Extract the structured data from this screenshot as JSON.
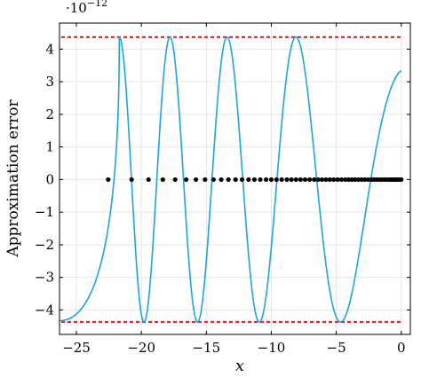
{
  "chart_data": {
    "type": "line",
    "title": "",
    "xlabel": "x",
    "ylabel": "Approximation error",
    "y_scale_label": "·10",
    "y_scale_exponent": "−12",
    "xlim": [
      -26.3,
      0.7
    ],
    "ylim": [
      -4.75,
      4.8
    ],
    "x_ticks": [
      -25,
      -20,
      -15,
      -10,
      -5,
      0
    ],
    "x_tick_labels": [
      "−25",
      "−20",
      "−15",
      "−10",
      "−5",
      "0"
    ],
    "y_ticks": [
      -4,
      -3,
      -2,
      -1,
      0,
      1,
      2,
      3,
      4
    ],
    "y_tick_labels": [
      "−4",
      "−3",
      "−2",
      "−1",
      "0",
      "1",
      "2",
      "3",
      "4"
    ],
    "grid": true,
    "colors": {
      "curve": "#16a6e0",
      "bound": "#e8242c",
      "zero": "#000000"
    },
    "error_bound": 4.37,
    "curve": {
      "description": "equioscillating error, oscillation between ±4.37 with phase π(−x)^1.5/13, onset near x = −21.7",
      "x_start": -26.3,
      "x_end": 0,
      "amplitude": 4.37,
      "left_tail_value": -4.33
    },
    "zeros": [
      -22.55,
      -20.75,
      -19.45,
      -18.35,
      -17.4,
      -16.55,
      -15.8,
      -15.1,
      -14.45,
      -13.85,
      -13.3,
      -12.75,
      -12.25,
      -11.75,
      -11.3,
      -10.85,
      -10.4,
      -10.0,
      -9.6,
      -9.2,
      -8.8,
      -8.45,
      -8.1,
      -7.75,
      -7.4,
      -7.05,
      -6.7,
      -6.4,
      -6.1,
      -5.8,
      -5.5,
      -5.2,
      -4.9,
      -4.6,
      -4.3,
      -4.05,
      -3.8,
      -3.55,
      -3.3,
      -3.05,
      -2.8,
      -2.55,
      -2.3,
      -2.1,
      -1.9,
      -1.7,
      -1.5,
      -1.3,
      -1.1,
      -0.9,
      -0.75,
      -0.6,
      -0.45,
      -0.3,
      -0.15,
      0.0
    ]
  }
}
